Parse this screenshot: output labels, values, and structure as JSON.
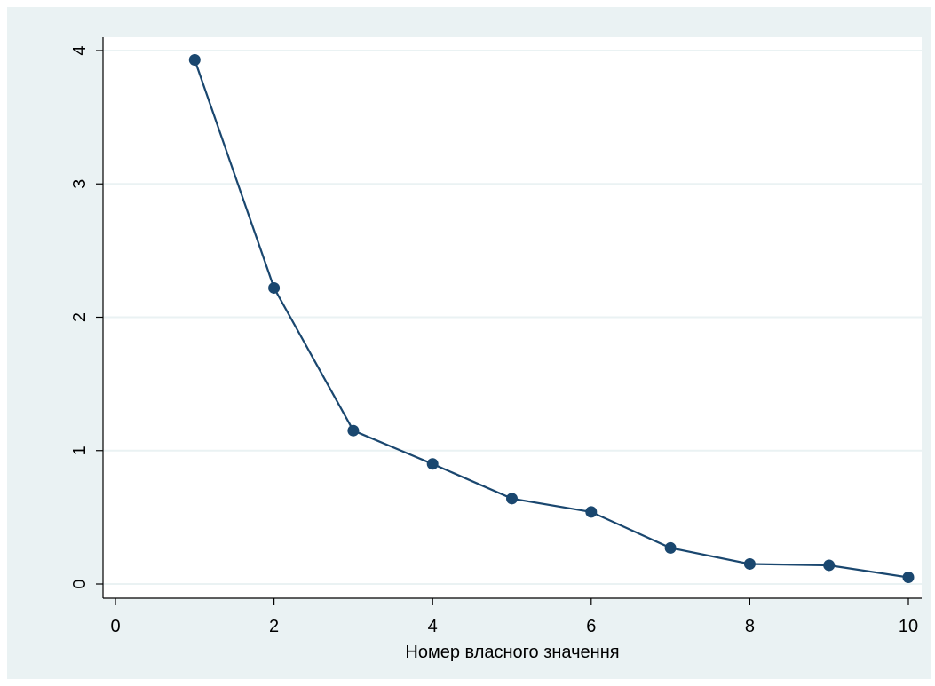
{
  "chart_data": {
    "type": "line",
    "title": "",
    "xlabel": "Номер власного значення",
    "ylabel": "",
    "xlim": [
      0,
      10
    ],
    "ylim": [
      0,
      4
    ],
    "xticks": [
      0,
      2,
      4,
      6,
      8,
      10
    ],
    "yticks": [
      0,
      1,
      2,
      3,
      4
    ],
    "grid": true,
    "markers": "circle",
    "series": [
      {
        "x": [
          1,
          2,
          3,
          4,
          5,
          6,
          7,
          8,
          9,
          10
        ],
        "y": [
          3.93,
          2.22,
          1.15,
          0.9,
          0.64,
          0.54,
          0.27,
          0.15,
          0.14,
          0.05
        ]
      }
    ]
  },
  "colors": {
    "background": "#eaf2f3",
    "plot_background": "#ffffff",
    "grid": "#eaf2f3",
    "series": "#1a476f",
    "axis": "#000000"
  }
}
